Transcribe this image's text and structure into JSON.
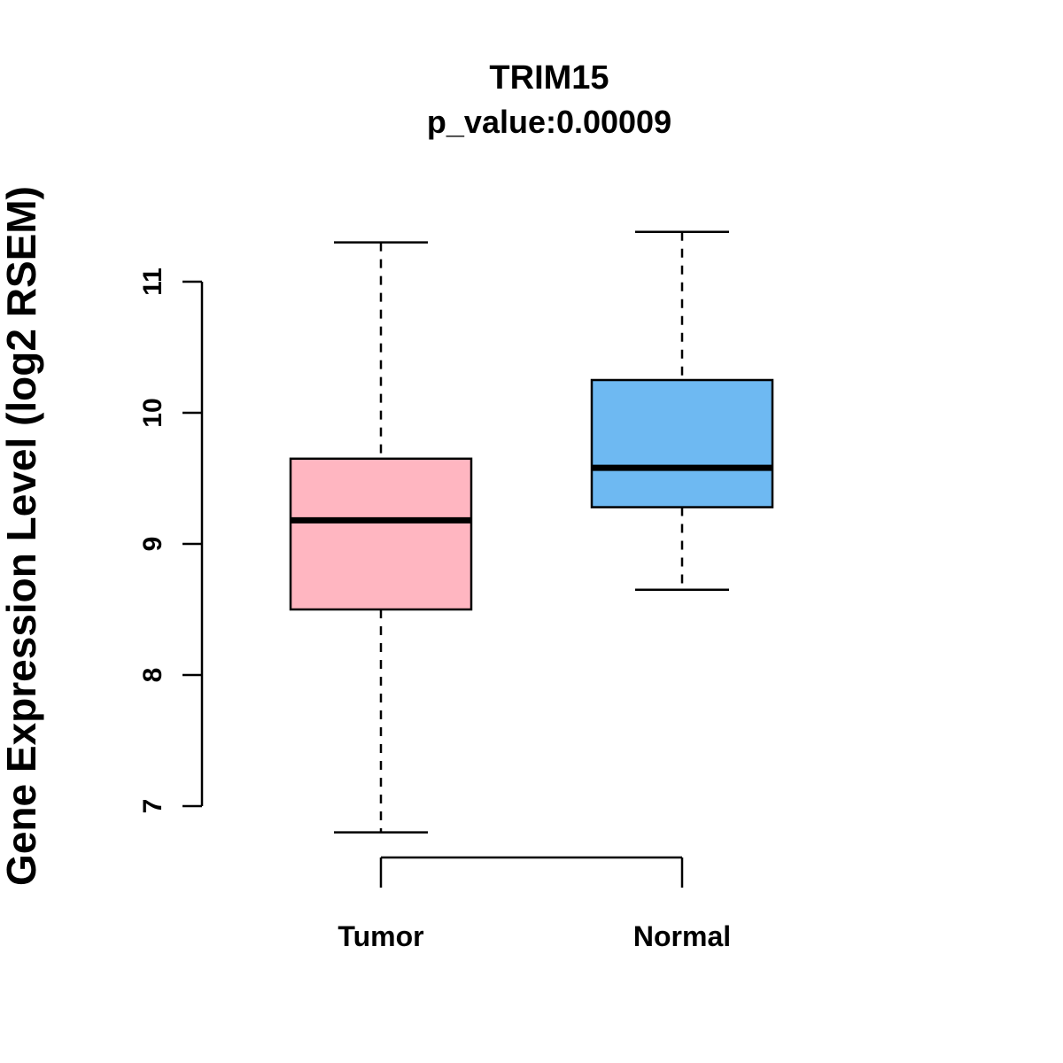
{
  "title": "TRIM15",
  "subtitle": "p_value:0.00009",
  "chart_data": {
    "type": "boxplot",
    "title": "TRIM15",
    "subtitle": "p_value:0.00009",
    "xlabel": "",
    "ylabel": "Gene Expression Level (log2 RSEM)",
    "yticks": [
      7,
      8,
      9,
      10,
      11
    ],
    "ylim": [
      6.6,
      11.5
    ],
    "grid": false,
    "legend_position": "none",
    "categories": [
      "Tumor",
      "Normal"
    ],
    "groups": [
      {
        "label": "Tumor",
        "color": "#FFB6C1",
        "lower_whisker": 6.8,
        "q1": 8.5,
        "median": 9.18,
        "q3": 9.65,
        "upper_whisker": 11.3
      },
      {
        "label": "Normal",
        "color": "#6EB9F2",
        "lower_whisker": 8.65,
        "q1": 9.28,
        "median": 9.58,
        "q3": 10.25,
        "upper_whisker": 11.38
      }
    ]
  }
}
